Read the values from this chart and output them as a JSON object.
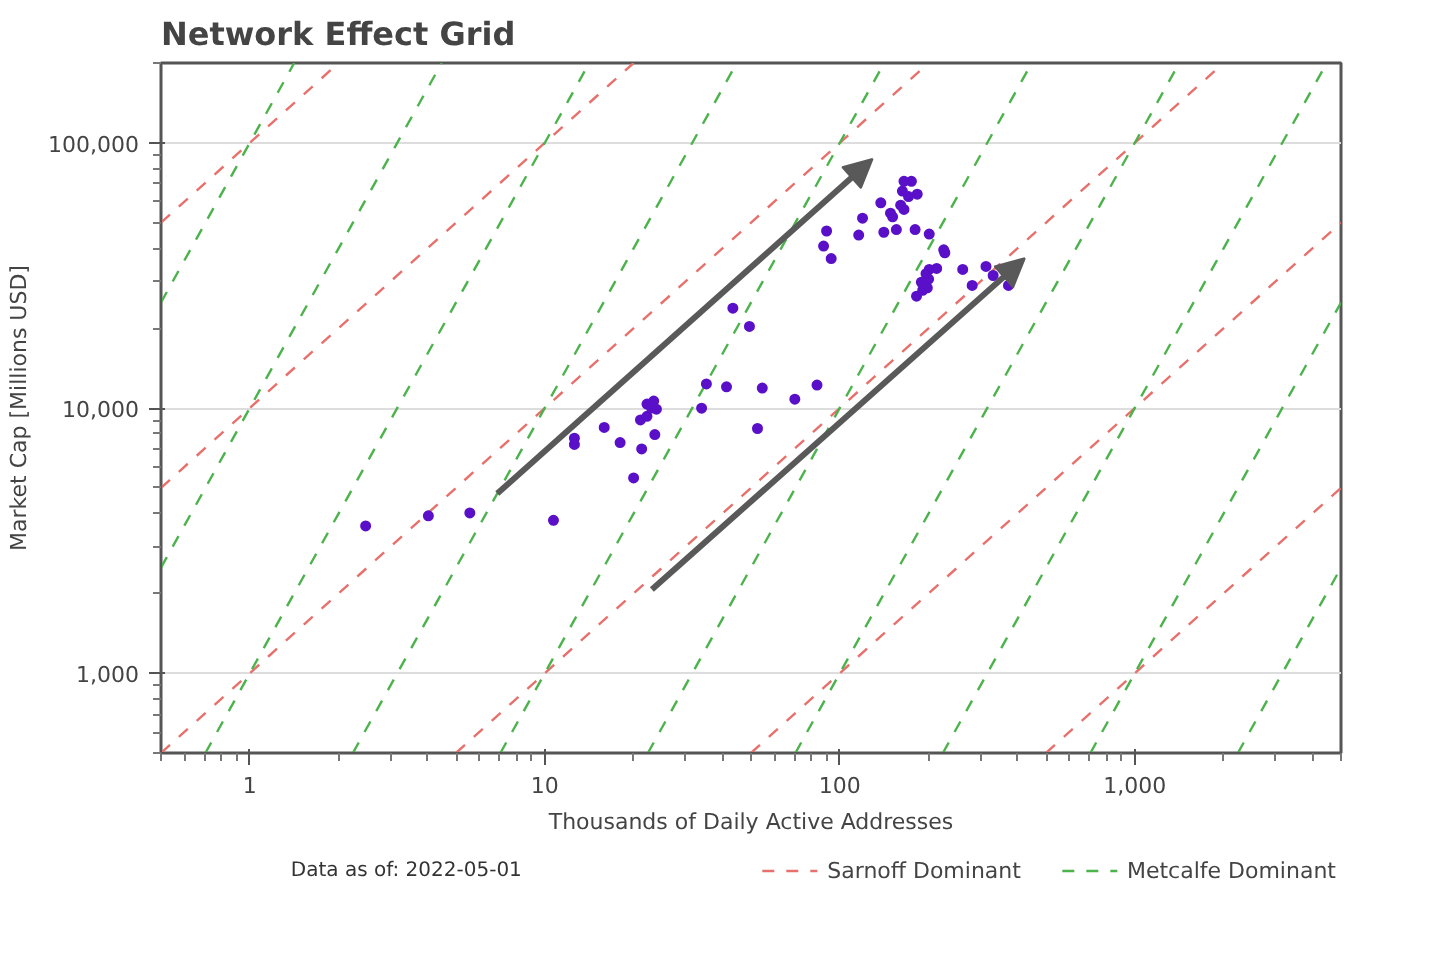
{
  "chart_data": {
    "type": "scatter",
    "title": "Network Effect Grid",
    "xlabel": "Thousands of Daily Active Addresses",
    "ylabel": "Market Cap [Millions USD]",
    "annotations": [
      "Data as of: 2022-05-01"
    ],
    "log": "xy",
    "grid": "y",
    "legend": "bottom right",
    "xlim": [
      0.5,
      5000
    ],
    "ylim": [
      500,
      200000
    ],
    "xticks": [
      1,
      10,
      100,
      {
        "value": 1000,
        "label": "1,000"
      }
    ],
    "yticks": [
      {
        "value": 1000,
        "label": "1,000"
      },
      {
        "value": 10000,
        "label": "10,000"
      },
      {
        "value": 100000,
        "label": "100,000"
      }
    ],
    "series": [
      {
        "marker": "circle",
        "color": "#5a10c8",
        "x": [
          2.47,
          4.03,
          5.57,
          10.7,
          12.6,
          12.6,
          15.9,
          18.0,
          20.0,
          21.3,
          21.1,
          22.2,
          22.2,
          23.4,
          23.0,
          23.9,
          23.6,
          35.3,
          34.0,
          41.3,
          43.4,
          49.4,
          52.6,
          54.6,
          70.4,
          83.7,
          88.1,
          90.2,
          93.5,
          115.9,
          119.4,
          137.7,
          141,
          148.5,
          151,
          155.5,
          160.8,
          165,
          165,
          174.9,
          163,
          171,
          183,
          180,
          201,
          225,
          227,
          201,
          213,
          196,
          200,
          189,
          198,
          191,
          182,
          261,
          281,
          313,
          331,
          373
        ],
        "values": [
          3590,
          3920,
          4020,
          3770,
          7690,
          7290,
          8450,
          7410,
          5450,
          7010,
          9020,
          9300,
          10350,
          10620,
          10000,
          9900,
          7940,
          12330,
          9980,
          12020,
          23800,
          20300,
          8370,
          11890,
          10800,
          12200,
          40800,
          46500,
          36600,
          44900,
          52000,
          59400,
          46000,
          54300,
          52600,
          47100,
          58200,
          56100,
          71600,
          71600,
          65800,
          62700,
          64000,
          47100,
          45300,
          39500,
          38500,
          33300,
          33600,
          32100,
          30600,
          29800,
          28400,
          27800,
          26400,
          33300,
          29000,
          34200,
          31600,
          29000
        ]
      },
      {
        "type": "line",
        "name": "Sarnoff Dominant",
        "color": "#e8706c",
        "line_style": "dashed",
        "x": [
          0.5,
          2
        ],
        "values": [
          50000,
          200000
        ]
      },
      {
        "type": "line",
        "color": "#e8706c",
        "line_style": "dashed",
        "x": [
          0.5,
          20
        ],
        "values": [
          5000,
          200000
        ]
      },
      {
        "type": "line",
        "color": "#e8706c",
        "line_style": "dashed",
        "x": [
          0.5,
          200
        ],
        "values": [
          500,
          200000
        ]
      },
      {
        "type": "line",
        "color": "#e8706c",
        "line_style": "dashed",
        "x": [
          5,
          2000
        ],
        "values": [
          500,
          200000
        ]
      },
      {
        "type": "line",
        "color": "#e8706c",
        "line_style": "dashed",
        "x": [
          50,
          5000
        ],
        "values": [
          500,
          50000
        ]
      },
      {
        "type": "line",
        "color": "#e8706c",
        "line_style": "dashed",
        "x": [
          500,
          5000
        ],
        "values": [
          500,
          5000
        ]
      },
      {
        "type": "line",
        "name": "Metcalfe Dominant",
        "color": "#4cb34c",
        "line_style": "dashed",
        "x": [
          0.5,
          1.414
        ],
        "values": [
          25000,
          199940
        ]
      },
      {
        "type": "line",
        "color": "#4cb34c",
        "line_style": "dashed",
        "x": [
          0.5,
          4.472
        ],
        "values": [
          2500,
          199990
        ]
      },
      {
        "type": "line",
        "color": "#4cb34c",
        "line_style": "dashed",
        "x": [
          0.7071,
          14.14
        ],
        "values": [
          500,
          199940
        ]
      },
      {
        "type": "line",
        "color": "#4cb34c",
        "line_style": "dashed",
        "x": [
          2.236,
          44.72
        ],
        "values": [
          500,
          199990
        ]
      },
      {
        "type": "line",
        "color": "#4cb34c",
        "line_style": "dashed",
        "x": [
          7.071,
          141.4
        ],
        "values": [
          500,
          199930
        ]
      },
      {
        "type": "line",
        "color": "#4cb34c",
        "line_style": "dashed",
        "x": [
          22.36,
          447.2
        ],
        "values": [
          500,
          199990
        ]
      },
      {
        "type": "line",
        "color": "#4cb34c",
        "line_style": "dashed",
        "x": [
          70.71,
          1414
        ],
        "values": [
          500,
          199940
        ]
      },
      {
        "type": "line",
        "color": "#4cb34c",
        "line_style": "dashed",
        "x": [
          223.6,
          4472
        ],
        "values": [
          500,
          199990
        ]
      },
      {
        "type": "line",
        "color": "#4cb34c",
        "line_style": "dashed",
        "x": [
          707.1,
          5000
        ],
        "values": [
          500,
          25000
        ]
      },
      {
        "type": "line",
        "color": "#4cb34c",
        "line_style": "dashed",
        "x": [
          2236,
          5000
        ],
        "values": [
          500,
          2500
        ]
      }
    ]
  }
}
